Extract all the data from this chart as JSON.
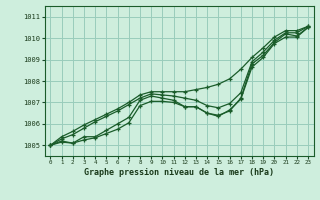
{
  "xlabel": "Graphe pression niveau de la mer (hPa)",
  "background_color": "#ceeedd",
  "grid_color": "#99ccbb",
  "line_color": "#1a5c2a",
  "xlim": [
    -0.5,
    23.5
  ],
  "ylim": [
    1004.5,
    1011.5
  ],
  "yticks": [
    1005,
    1006,
    1007,
    1008,
    1009,
    1010,
    1011
  ],
  "xticks": [
    0,
    1,
    2,
    3,
    4,
    5,
    6,
    7,
    8,
    9,
    10,
    11,
    12,
    13,
    14,
    15,
    16,
    17,
    18,
    19,
    20,
    21,
    22,
    23
  ],
  "series": [
    [
      1005.0,
      1005.2,
      1005.1,
      1005.4,
      1005.4,
      1005.7,
      1006.0,
      1006.3,
      1007.1,
      1007.3,
      1007.2,
      1007.1,
      1006.8,
      1006.8,
      1006.5,
      1006.4,
      1006.6,
      1007.2,
      1008.8,
      1009.2,
      1009.8,
      1010.2,
      1010.1,
      1010.5
    ],
    [
      1005.0,
      1005.15,
      1005.1,
      1005.25,
      1005.35,
      1005.55,
      1005.75,
      1006.05,
      1006.85,
      1007.05,
      1007.05,
      1007.0,
      1006.8,
      1006.8,
      1006.5,
      1006.35,
      1006.65,
      1007.15,
      1008.65,
      1009.1,
      1009.75,
      1010.05,
      1010.05,
      1010.5
    ],
    [
      1005.0,
      1005.3,
      1005.5,
      1005.8,
      1006.1,
      1006.35,
      1006.6,
      1006.9,
      1007.2,
      1007.4,
      1007.35,
      1007.3,
      1007.2,
      1007.1,
      1006.85,
      1006.75,
      1006.95,
      1007.45,
      1008.9,
      1009.35,
      1009.9,
      1010.25,
      1010.25,
      1010.55
    ],
    [
      1005.0,
      1005.4,
      1005.65,
      1005.95,
      1006.2,
      1006.45,
      1006.7,
      1007.0,
      1007.35,
      1007.5,
      1007.5,
      1007.5,
      1007.5,
      1007.6,
      1007.7,
      1007.85,
      1008.1,
      1008.55,
      1009.1,
      1009.55,
      1010.05,
      1010.35,
      1010.35,
      1010.55
    ]
  ]
}
